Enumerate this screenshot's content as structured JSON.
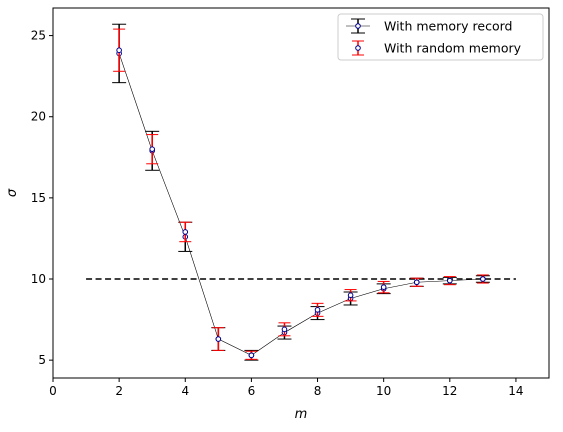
{
  "chart_data": {
    "type": "scatter",
    "title": "",
    "xlabel": "m",
    "ylabel": "σ",
    "xlim": [
      0,
      15
    ],
    "ylim": [
      3.9,
      26.7
    ],
    "xticks": [
      0,
      2,
      4,
      6,
      8,
      10,
      12,
      14
    ],
    "yticks": [
      5,
      10,
      15,
      20,
      25
    ],
    "xtick_labels": [
      "0",
      "2",
      "4",
      "6",
      "8",
      "10",
      "12",
      "14"
    ],
    "ytick_labels": [
      "5",
      "10",
      "15",
      "20",
      "25"
    ],
    "grid": false,
    "legend_placement": "top-right",
    "reference_line": {
      "y": 10,
      "x_range": [
        1,
        14
      ],
      "style": "dashed",
      "color": "#000000"
    },
    "series": [
      {
        "name": "With memory record",
        "color": "#000000",
        "marker_edge": "#00008b",
        "connected": true,
        "x": [
          2,
          3,
          4,
          5,
          6,
          7,
          8,
          9,
          10,
          11,
          12,
          13
        ],
        "y": [
          23.9,
          17.9,
          12.6,
          6.3,
          5.3,
          6.7,
          7.9,
          8.8,
          9.4,
          9.8,
          9.9,
          10.0
        ],
        "err": [
          1.8,
          1.2,
          0.9,
          0.7,
          0.3,
          0.4,
          0.4,
          0.4,
          0.3,
          0.25,
          0.2,
          0.2
        ]
      },
      {
        "name": "With random memory",
        "color": "#ff0000",
        "marker_edge": "#00008b",
        "connected": false,
        "x": [
          2,
          3,
          4,
          5,
          6,
          7,
          8,
          9,
          10,
          11,
          12,
          13
        ],
        "y": [
          24.1,
          18.0,
          12.9,
          6.3,
          5.3,
          6.9,
          8.1,
          9.0,
          9.5,
          9.8,
          9.9,
          10.0
        ],
        "err": [
          1.3,
          0.9,
          0.6,
          0.7,
          0.25,
          0.4,
          0.4,
          0.35,
          0.35,
          0.25,
          0.25,
          0.25
        ]
      }
    ]
  }
}
